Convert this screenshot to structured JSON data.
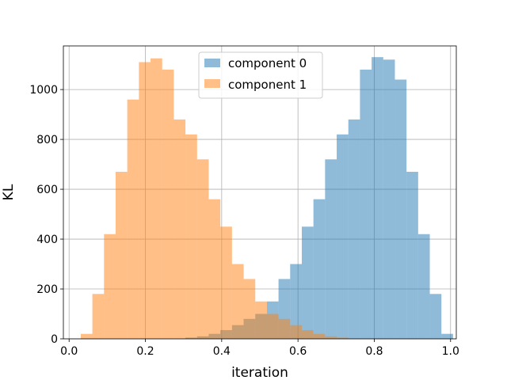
{
  "chart_data": {
    "type": "histogram",
    "xlabel": "iteration",
    "ylabel": "KL",
    "xlim": [
      -0.015,
      1.015
    ],
    "ylim": [
      0,
      1175
    ],
    "xticks": [
      0.0,
      0.2,
      0.4,
      0.6,
      0.8,
      1.0
    ],
    "xtick_labels": [
      "0.0",
      "0.2",
      "0.4",
      "0.6",
      "0.8",
      "1.0"
    ],
    "yticks": [
      0,
      200,
      400,
      600,
      800,
      1000
    ],
    "ytick_labels": [
      "0",
      "200",
      "400",
      "600",
      "800",
      "1000"
    ],
    "grid": true,
    "legend_position": "top-center",
    "bin_width": 0.0305,
    "series": [
      {
        "name": "component 0",
        "color": "#1f77b4",
        "opacity": 0.5,
        "bins_start": 0.0305,
        "counts": [
          0,
          0,
          0,
          0,
          0,
          0,
          0,
          0,
          0,
          5,
          10,
          20,
          35,
          55,
          80,
          100,
          150,
          240,
          300,
          450,
          560,
          720,
          820,
          880,
          1080,
          1130,
          1120,
          1040,
          670,
          420,
          180,
          20
        ]
      },
      {
        "name": "component 1",
        "color": "#ff7f0e",
        "opacity": 0.5,
        "bins_start": 0.0305,
        "counts": [
          20,
          180,
          420,
          670,
          960,
          1110,
          1125,
          1080,
          880,
          820,
          720,
          560,
          450,
          300,
          240,
          150,
          100,
          80,
          55,
          35,
          20,
          10,
          5,
          2,
          0,
          0,
          0,
          0,
          0,
          0,
          0,
          0
        ]
      }
    ]
  }
}
